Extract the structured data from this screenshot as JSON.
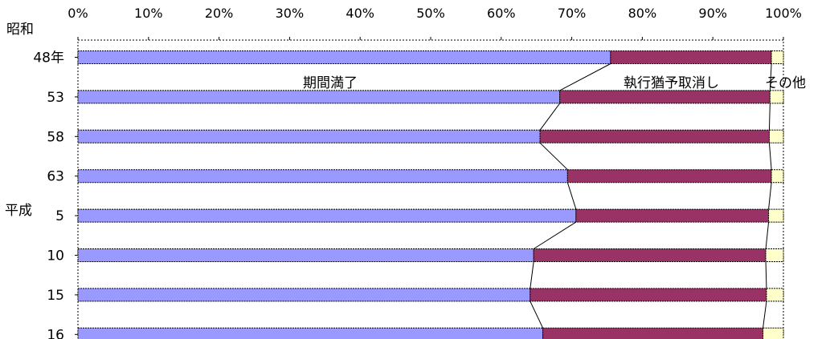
{
  "chart_data": {
    "type": "bar",
    "orientation": "horizontal",
    "stacked": "percent",
    "xlim": [
      0,
      100
    ],
    "xticks": [
      "0%",
      "10%",
      "20%",
      "30%",
      "40%",
      "50%",
      "60%",
      "70%",
      "80%",
      "90%",
      "100%"
    ],
    "era_labels": [
      "昭和",
      "平成"
    ],
    "categories": [
      "48年",
      "53",
      "58",
      "63",
      "5",
      "10",
      "15",
      "16"
    ],
    "series": [
      {
        "name": "期間満了",
        "color": "#9999ff",
        "values": [
          75.5,
          68.3,
          65.5,
          69.4,
          70.6,
          64.6,
          64.1,
          65.9
        ]
      },
      {
        "name": "執行猶予取消し",
        "color": "#993366",
        "values": [
          22.8,
          29.8,
          32.5,
          28.9,
          27.3,
          32.9,
          33.5,
          31.2
        ]
      },
      {
        "name": "その他",
        "color": "#ffffcc",
        "values": [
          1.7,
          1.9,
          2.0,
          1.7,
          2.1,
          2.5,
          2.4,
          2.9
        ]
      }
    ],
    "legend": "inline",
    "grid": false,
    "series_lines": true
  }
}
